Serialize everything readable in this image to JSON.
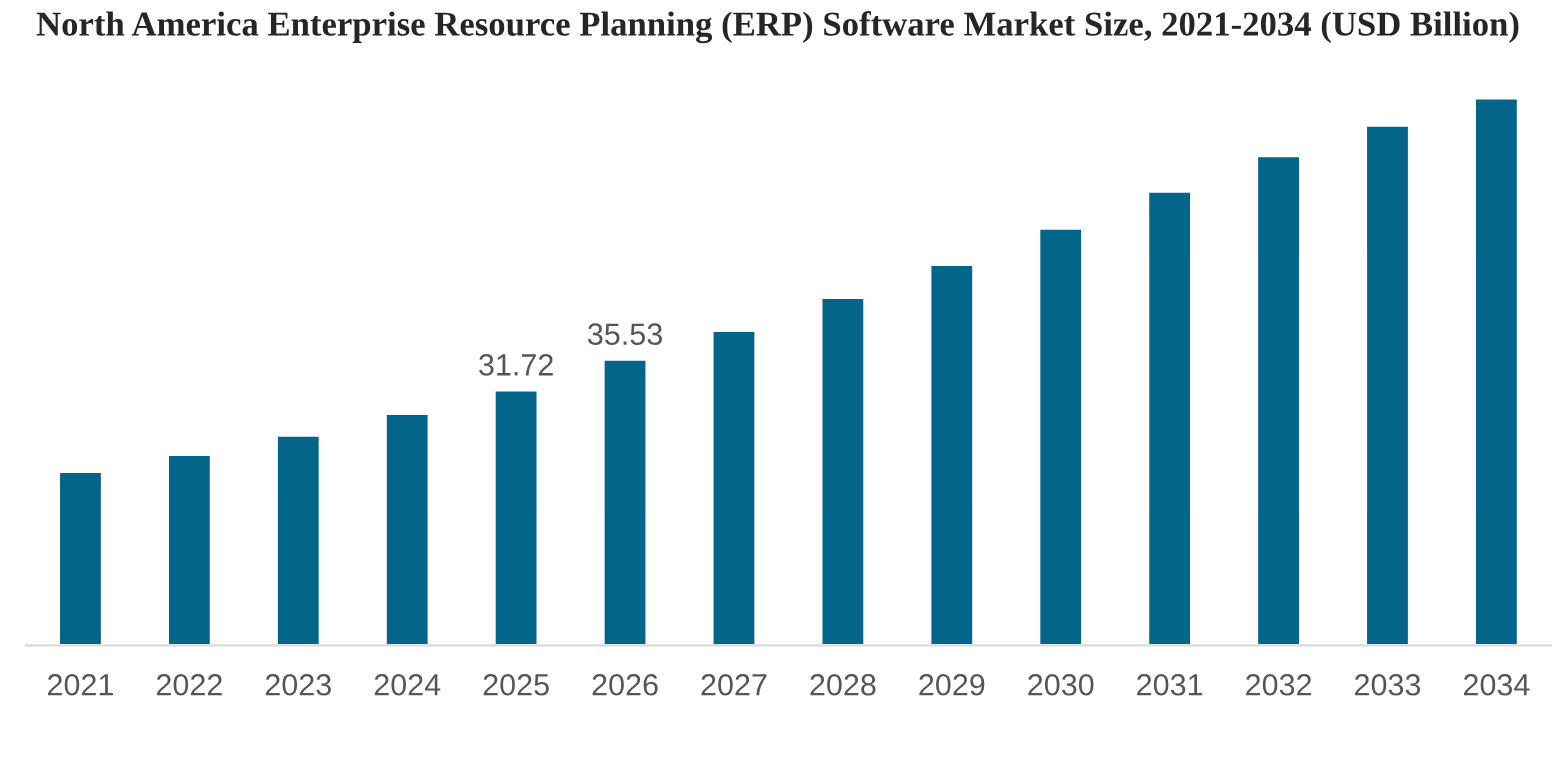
{
  "chart_data": {
    "type": "bar",
    "title": "North America Enterprise Resource Planning (ERP) Software Market Size, 2021-2034 (USD Billion)",
    "categories": [
      "2021",
      "2022",
      "2023",
      "2024",
      "2025",
      "2026",
      "2027",
      "2028",
      "2029",
      "2030",
      "2031",
      "2032",
      "2033",
      "2034"
    ],
    "values": [
      21.6,
      23.7,
      26.1,
      28.8,
      31.72,
      35.53,
      39.1,
      43.2,
      47.3,
      51.8,
      56.4,
      60.8,
      64.6,
      68.0
    ],
    "value_labels": [
      null,
      null,
      null,
      null,
      "31.72",
      "35.53",
      null,
      null,
      null,
      null,
      null,
      null,
      null,
      null
    ],
    "color": "#04658a",
    "grid": false,
    "legend": false
  }
}
